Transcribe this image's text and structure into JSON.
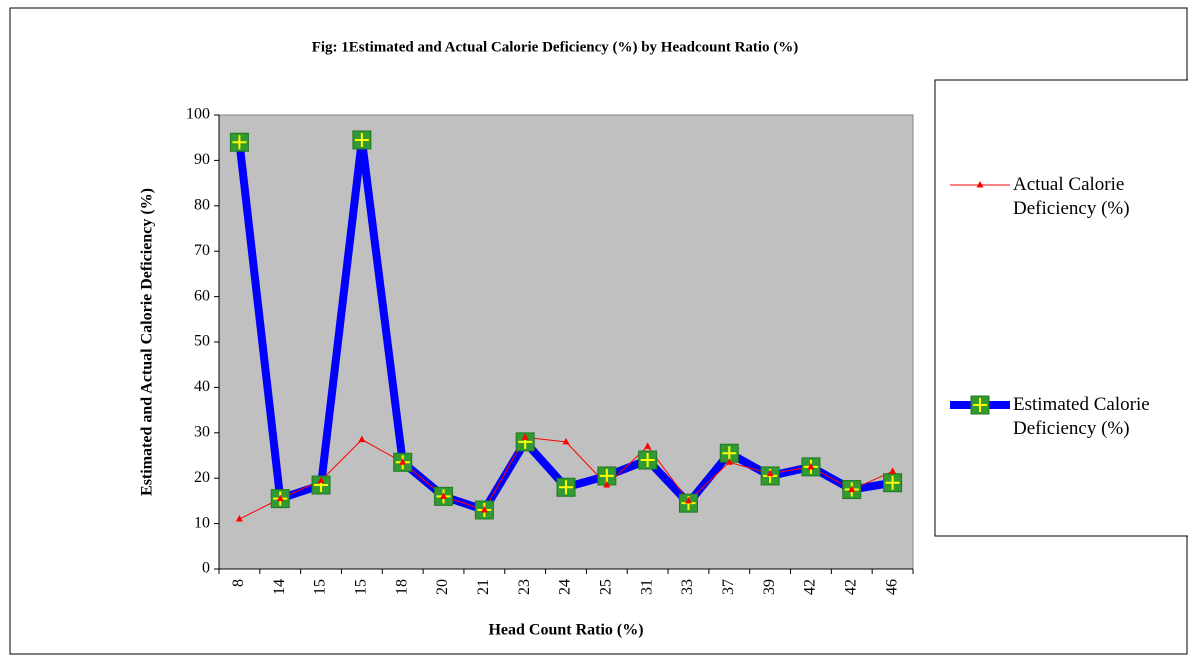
{
  "chart_data": {
    "type": "line",
    "title": "Fig: 1Estimated and Actual Calorie Deficiency (%) by Headcount Ratio (%)",
    "x_label": "Head Count Ratio (%)",
    "y_label": "Estimated and Actual Calorie Deficiency (%)",
    "categories": [
      "8",
      "14",
      "15",
      "15",
      "18",
      "20",
      "21",
      "23",
      "24",
      "25",
      "31",
      "33",
      "37",
      "39",
      "42",
      "42",
      "46"
    ],
    "series": [
      {
        "name": "Actual Calorie Deficiency (%)",
        "color": "#ff0000",
        "values": [
          11,
          15.5,
          19.5,
          28.5,
          23.5,
          16,
          13,
          29,
          28,
          18.5,
          27,
          15,
          23.5,
          21,
          22.5,
          17.5,
          21.5
        ]
      },
      {
        "name": "Estimated Calorie Deficiency (%)",
        "color": "#0000ff",
        "values": [
          94,
          15.5,
          18.5,
          94.5,
          23.5,
          16,
          13,
          28,
          18,
          20.5,
          24,
          14.5,
          25.5,
          20.5,
          22.5,
          17.5,
          19
        ]
      }
    ],
    "ylim": [
      0,
      100
    ],
    "yticks": [
      0,
      10,
      20,
      30,
      40,
      50,
      60,
      70,
      80,
      90,
      100
    ],
    "grid": false,
    "legend": "right"
  }
}
